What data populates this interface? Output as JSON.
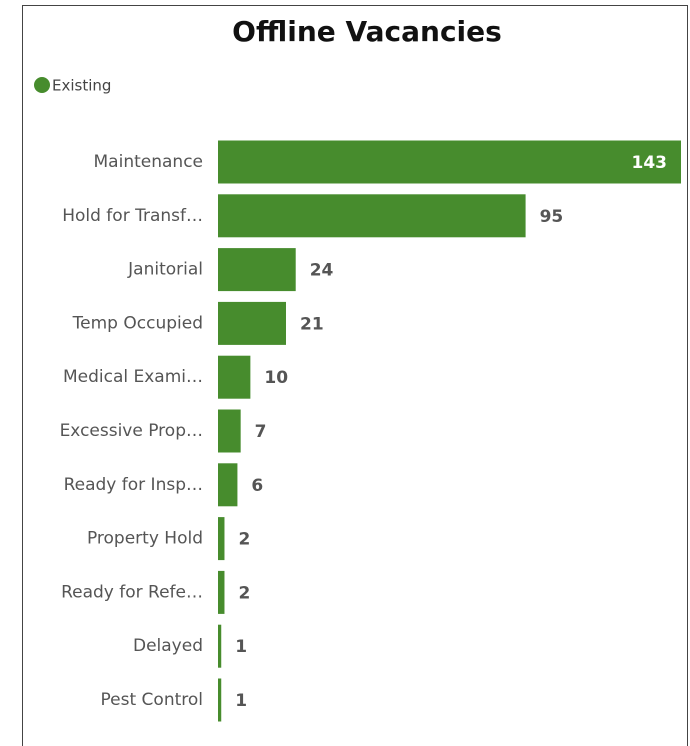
{
  "chart_data": {
    "type": "bar",
    "orientation": "horizontal",
    "title": "Offline Vacancies",
    "legend": "top-left",
    "series": [
      {
        "name": "Existing",
        "color": "#478c2d",
        "values": [
          143,
          95,
          24,
          21,
          10,
          7,
          6,
          2,
          2,
          1,
          1
        ]
      }
    ],
    "categories": [
      "Maintenance",
      "Hold for Transf…",
      "Janitorial",
      "Temp Occupied",
      "Medical Exami…",
      "Excessive Prop…",
      "Ready for Insp…",
      "Property Hold",
      "Ready for Refe…",
      "Delayed",
      "Pest Control"
    ]
  }
}
